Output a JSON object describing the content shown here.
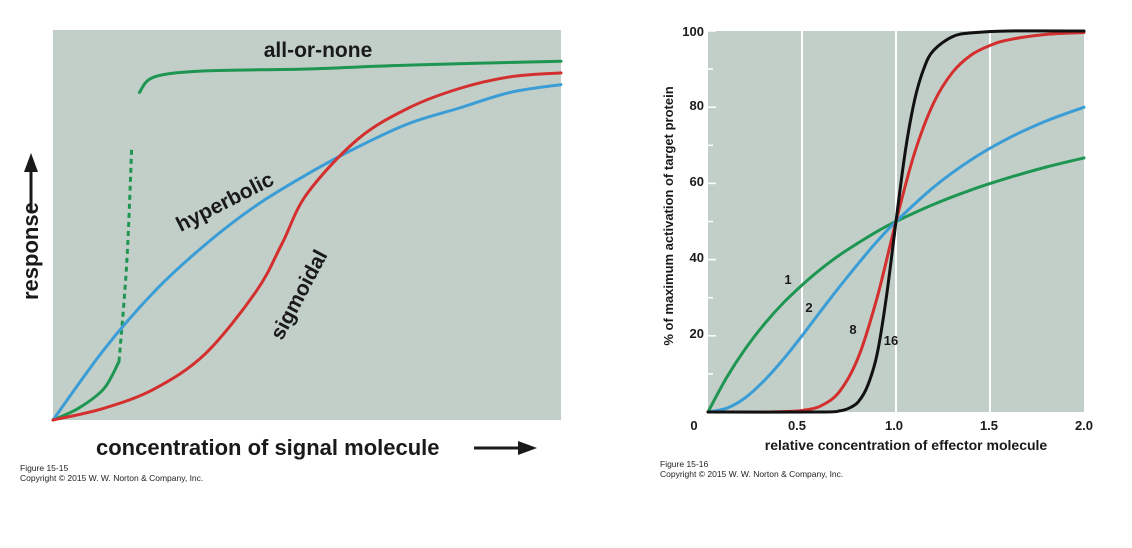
{
  "chart_data": [
    {
      "type": "line",
      "title": "",
      "xlabel": "concentration of signal molecule",
      "ylabel": "response",
      "xlim": [
        0,
        1
      ],
      "ylim": [
        0,
        1
      ],
      "grid": false,
      "colors": {
        "background": "#c2cfc8"
      },
      "series": [
        {
          "name": "all-or-none",
          "color": "#1e9652",
          "x": [
            0.0,
            0.05,
            0.1,
            0.13,
            0.145,
            0.155,
            0.17,
            0.2,
            0.3,
            0.5,
            0.7,
            1.0
          ],
          "y": [
            0.0,
            0.03,
            0.08,
            0.15,
            0.4,
            0.7,
            0.84,
            0.88,
            0.895,
            0.9,
            0.91,
            0.92
          ],
          "dashed_x": [
            0.13,
            0.16
          ]
        },
        {
          "name": "hyperbolic",
          "color": "#3b9dd6",
          "x": [
            0.0,
            0.1,
            0.2,
            0.3,
            0.4,
            0.5,
            0.6,
            0.7,
            0.8,
            0.9,
            1.0
          ],
          "y": [
            0.0,
            0.18,
            0.33,
            0.45,
            0.55,
            0.63,
            0.7,
            0.76,
            0.8,
            0.84,
            0.86
          ]
        },
        {
          "name": "sigmoidal",
          "color": "#d32f2f",
          "x": [
            0.0,
            0.1,
            0.2,
            0.3,
            0.4,
            0.45,
            0.5,
            0.6,
            0.7,
            0.8,
            0.9,
            1.0
          ],
          "y": [
            0.0,
            0.03,
            0.08,
            0.17,
            0.33,
            0.45,
            0.58,
            0.72,
            0.8,
            0.85,
            0.88,
            0.89
          ]
        }
      ]
    },
    {
      "type": "line",
      "title": "",
      "xlabel": "relative concentration of effector molecule",
      "ylabel": "% of maximum activation of target protein",
      "xlim": [
        0,
        2.0
      ],
      "ylim": [
        0,
        100
      ],
      "x_ticks": [
        "0",
        "0.5",
        "1.0",
        "1.5",
        "2.0"
      ],
      "y_ticks": [
        "20",
        "40",
        "60",
        "80",
        "100"
      ],
      "grid": true,
      "colors": {
        "background": "#c2cfc8",
        "grid": "#ffffff"
      },
      "series": [
        {
          "name": "1",
          "color": "#1e9652",
          "x": [
            0,
            0.1,
            0.2,
            0.3,
            0.4,
            0.5,
            0.6,
            0.7,
            0.8,
            0.9,
            1.0,
            1.2,
            1.4,
            1.6,
            1.8,
            2.0
          ],
          "y": [
            0,
            9.1,
            16.7,
            23.1,
            28.6,
            33.3,
            37.5,
            41.2,
            44.4,
            47.4,
            50.0,
            54.5,
            58.3,
            61.5,
            64.3,
            66.7
          ]
        },
        {
          "name": "2",
          "color": "#3b9dd6",
          "x": [
            0,
            0.1,
            0.2,
            0.3,
            0.4,
            0.5,
            0.6,
            0.7,
            0.8,
            0.9,
            1.0,
            1.2,
            1.4,
            1.6,
            1.8,
            2.0
          ],
          "y": [
            0,
            1.0,
            3.8,
            8.3,
            13.8,
            20.0,
            26.5,
            32.9,
            39.0,
            44.8,
            50.0,
            59.0,
            66.2,
            71.9,
            76.4,
            80.0
          ]
        },
        {
          "name": "8",
          "color": "#d32f2f",
          "x": [
            0,
            0.3,
            0.4,
            0.5,
            0.6,
            0.7,
            0.8,
            0.9,
            1.0,
            1.1,
            1.2,
            1.3,
            1.4,
            1.5,
            1.6,
            1.8,
            2.0
          ],
          "y": [
            0,
            0.0,
            0.1,
            0.4,
            1.6,
            5.4,
            14.4,
            30.1,
            50.0,
            68.2,
            81.1,
            89.1,
            93.7,
            96.2,
            97.7,
            99.1,
            99.6
          ]
        },
        {
          "name": "16",
          "color": "#111111",
          "x": [
            0,
            0.6,
            0.7,
            0.75,
            0.8,
            0.85,
            0.9,
            0.95,
            1.0,
            1.05,
            1.1,
            1.15,
            1.2,
            1.3,
            1.4,
            1.6,
            2.0
          ],
          "y": [
            0,
            0.0,
            0.3,
            1.0,
            2.7,
            7.0,
            15.3,
            30.6,
            50.0,
            68.6,
            82.1,
            90.4,
            94.9,
            98.5,
            99.5,
            100,
            100
          ]
        }
      ]
    }
  ],
  "captions": [
    {
      "figure": "Figure 15-15",
      "copyright": "Copyright © 2015 W. W. Norton & Company, Inc."
    },
    {
      "figure": "Figure 15-16",
      "copyright": "Copyright © 2015 W. W. Norton & Company, Inc."
    }
  ]
}
